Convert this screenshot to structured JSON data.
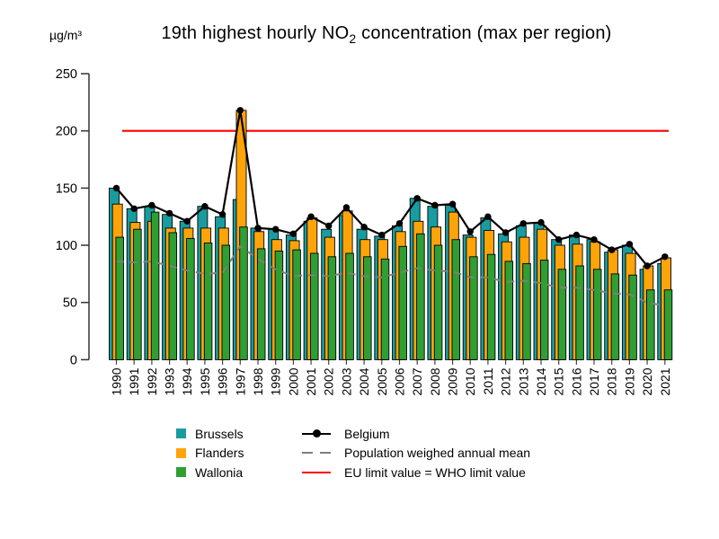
{
  "title": {
    "prefix": "19th highest hourly NO",
    "subscript": "2",
    "suffix": " concentration (max per region)"
  },
  "y_axis": {
    "unit_label": "µg/m³",
    "tick_labels": [
      "0",
      "50",
      "100",
      "150",
      "200",
      "250"
    ]
  },
  "legend": {
    "col1": [
      {
        "label": "Brussels",
        "color": "#189CA0"
      },
      {
        "label": "Flanders",
        "color": "#FFA408"
      },
      {
        "label": "Wallonia",
        "color": "#2F9E33"
      }
    ],
    "col2": [
      {
        "label": "Belgium",
        "type": "line-dot",
        "color": "#000000"
      },
      {
        "label": "Population weighed annual mean",
        "type": "dashed",
        "color": "#7F7F7F"
      },
      {
        "label": "EU limit value = WHO limit value",
        "type": "solid",
        "color": "#FF0000"
      }
    ]
  },
  "chart_data": {
    "type": "bar",
    "title": "19th highest hourly NO2 concentration (max per region)",
    "ylabel": "µg/m³",
    "ylim": [
      0,
      250
    ],
    "y_ticks": [
      0,
      50,
      100,
      150,
      200,
      250
    ],
    "grid": false,
    "legend_position": "bottom",
    "categories": [
      1990,
      1991,
      1992,
      1993,
      1994,
      1995,
      1996,
      1997,
      1998,
      1999,
      2000,
      2001,
      2002,
      2003,
      2004,
      2005,
      2006,
      2007,
      2008,
      2009,
      2010,
      2011,
      2012,
      2013,
      2014,
      2015,
      2016,
      2017,
      2018,
      2019,
      2020,
      2021
    ],
    "series": [
      {
        "name": "Brussels",
        "kind": "bar",
        "color": "#189CA0",
        "values": [
          150,
          132,
          134,
          127,
          121,
          134,
          125,
          140,
          115,
          114,
          109,
          121,
          114,
          126,
          114,
          108,
          117,
          141,
          134,
          135,
          109,
          124,
          110,
          117,
          120,
          105,
          109,
          105,
          94,
          100,
          79,
          84
        ]
      },
      {
        "name": "Flanders",
        "kind": "bar",
        "color": "#FFA408",
        "values": [
          136,
          120,
          121,
          115,
          115,
          115,
          115,
          218,
          112,
          105,
          104,
          124,
          107,
          130,
          105,
          105,
          112,
          121,
          116,
          129,
          107,
          113,
          103,
          107,
          114,
          100,
          101,
          103,
          96,
          93,
          82,
          89
        ]
      },
      {
        "name": "Wallonia",
        "kind": "bar",
        "color": "#2F9E33",
        "values": [
          107,
          114,
          129,
          111,
          106,
          102,
          100,
          116,
          97,
          95,
          96,
          93,
          90,
          93,
          90,
          88,
          99,
          110,
          100,
          105,
          90,
          92,
          86,
          84,
          87,
          79,
          82,
          79,
          75,
          74,
          61,
          61
        ]
      },
      {
        "name": "Belgium",
        "kind": "line-dot",
        "color": "#000000",
        "values": [
          150,
          132,
          135,
          128,
          121,
          134,
          127,
          218,
          115,
          114,
          110,
          125,
          117,
          133,
          116,
          109,
          119,
          141,
          135,
          136,
          112,
          125,
          111,
          119,
          120,
          105,
          109,
          105,
          96,
          101,
          82,
          90
        ]
      },
      {
        "name": "Population weighed annual mean",
        "kind": "dashed-line",
        "color": "#7F7F7F",
        "values": [
          86,
          85,
          86,
          82,
          78,
          75,
          76,
          99,
          88,
          79,
          73,
          74,
          73,
          76,
          73,
          72,
          76,
          80,
          78,
          77,
          72,
          72,
          68,
          69,
          67,
          63,
          63,
          61,
          58,
          57,
          50,
          47
        ]
      },
      {
        "name": "EU limit value = WHO limit value",
        "kind": "hline",
        "color": "#FF0000",
        "value": 200
      }
    ]
  }
}
